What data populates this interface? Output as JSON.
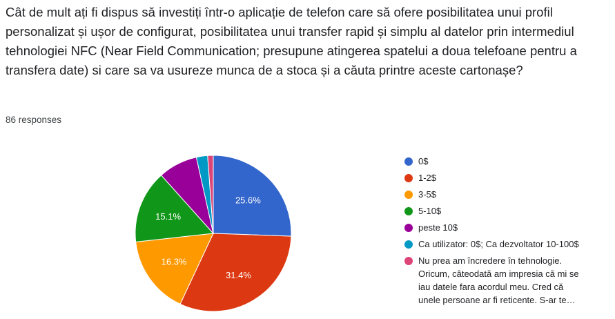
{
  "question": "Cât de mult ați fi dispus să investiți într-o aplicație de telefon care să ofere posibilitatea unui profil personalizat și ușor de configurat, posibilitatea unui transfer rapid și simplu al datelor prin intermediul tehnologiei NFC (Near Field Communication; presupune atingerea spatelui a doua telefoane pentru a transfera date) si care sa va usureze munca de a stoca și a căuta printre aceste cartonașe?",
  "responses": "86 responses",
  "chart_data": {
    "type": "pie",
    "total": 86,
    "slices": [
      {
        "name": "0$",
        "value": 22,
        "percent_label": "25.6%",
        "color": "#3366cc"
      },
      {
        "name": "1-2$",
        "value": 27,
        "percent_label": "31.4%",
        "color": "#dc3912"
      },
      {
        "name": "3-5$",
        "value": 14,
        "percent_label": "16.3%",
        "color": "#ff9900"
      },
      {
        "name": "5-10$",
        "value": 13,
        "percent_label": "15.1%",
        "color": "#109618"
      },
      {
        "name": "peste 10$",
        "value": 7,
        "percent_label": "",
        "color": "#990099"
      },
      {
        "name": "Ca utilizator: 0$; Ca dezvoltator 10-100$",
        "value": 2,
        "percent_label": "",
        "color": "#0099c6"
      },
      {
        "name": "Nu prea am încredere în tehnologie.\nOricum, câteodată am impresia că mi se\niau datele fara acordul meu. Cred că\nunele persoane ar fi reticente. S-ar te…",
        "value": 1,
        "percent_label": "",
        "color": "#dd4477"
      }
    ],
    "start_angle_deg": 90,
    "direction": "clockwise",
    "legend_position": "right"
  }
}
